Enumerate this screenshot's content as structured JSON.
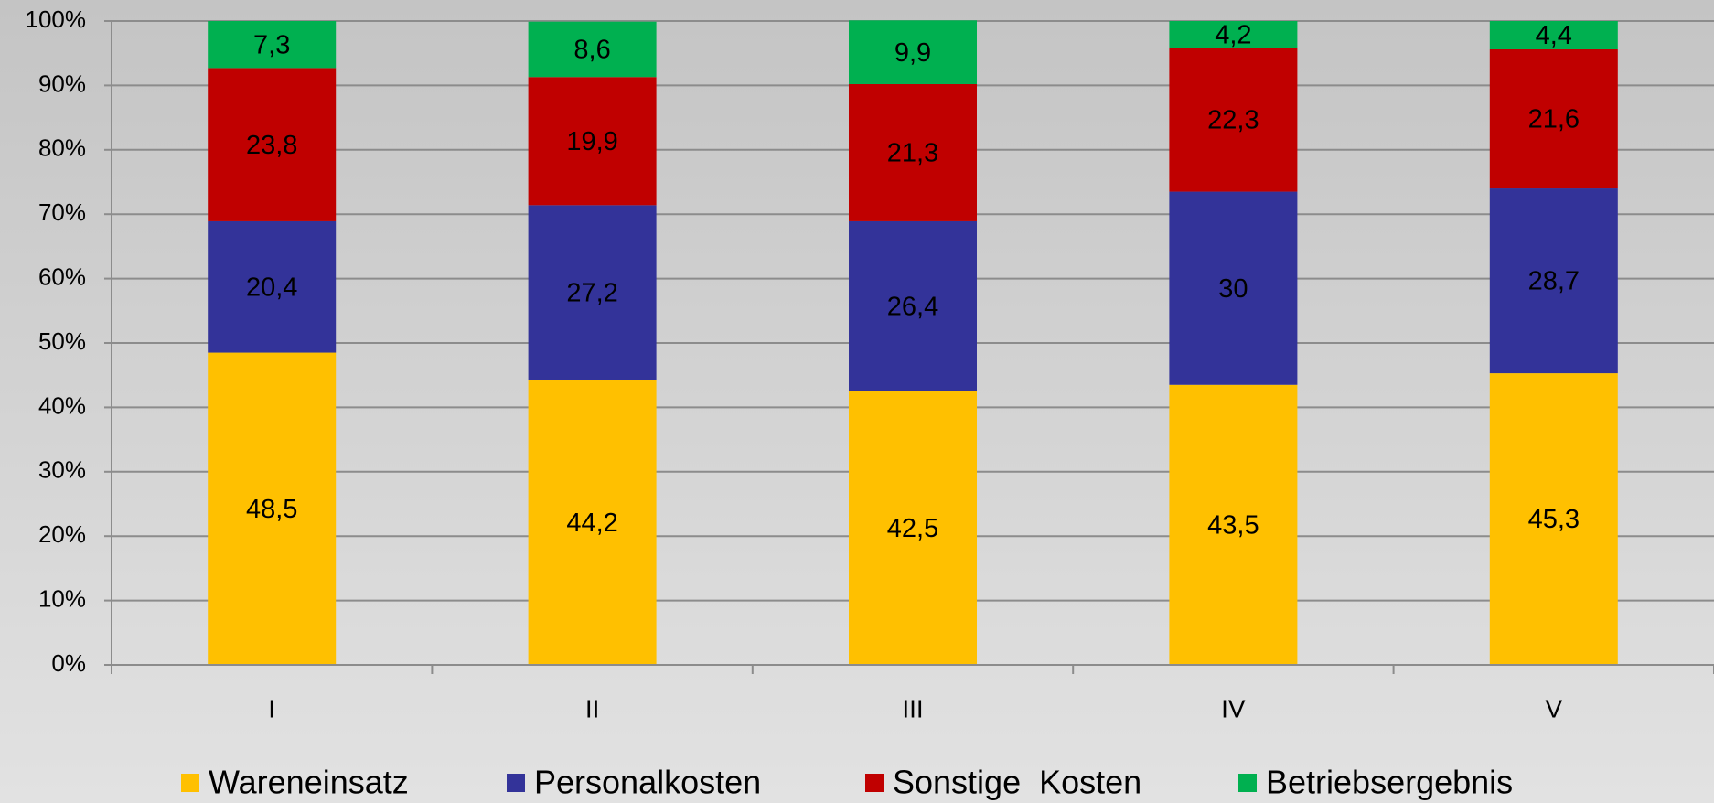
{
  "chart_data": {
    "type": "stacked_bar",
    "categories": [
      "I",
      "II",
      "III",
      "IV",
      "V"
    ],
    "series": [
      {
        "name": "Wareneinsatz",
        "color": "#ffc000",
        "values": [
          48.5,
          44.2,
          42.5,
          43.5,
          45.3
        ],
        "value_labels": [
          "48,5",
          "44,2",
          "42,5",
          "43,5",
          "45,3"
        ]
      },
      {
        "name": "Personalkosten",
        "color": "#333399",
        "values": [
          20.4,
          27.2,
          26.4,
          30,
          28.7
        ],
        "value_labels": [
          "20,4",
          "27,2",
          "26,4",
          "30",
          "28,7"
        ]
      },
      {
        "name": "Sonstige  Kosten",
        "color": "#c00000",
        "values": [
          23.8,
          19.9,
          21.3,
          22.3,
          21.6
        ],
        "value_labels": [
          "23,8",
          "19,9",
          "21,3",
          "22,3",
          "21,6"
        ]
      },
      {
        "name": "Betriebsergebnis",
        "color": "#00b050",
        "values": [
          7.3,
          8.6,
          9.9,
          4.2,
          4.4
        ],
        "value_labels": [
          "7,3",
          "8,6",
          "9,9",
          "4,2",
          "4,4"
        ]
      }
    ],
    "ylim": [
      0,
      100
    ],
    "yticks": [
      {
        "value": 0,
        "label": "0%"
      },
      {
        "value": 10,
        "label": "10%"
      },
      {
        "value": 20,
        "label": "20%"
      },
      {
        "value": 30,
        "label": "30%"
      },
      {
        "value": 40,
        "label": "40%"
      },
      {
        "value": 50,
        "label": "50%"
      },
      {
        "value": 60,
        "label": "60%"
      },
      {
        "value": 70,
        "label": "70%"
      },
      {
        "value": 80,
        "label": "80%"
      },
      {
        "value": 90,
        "label": "90%"
      },
      {
        "value": 100,
        "label": "100%"
      }
    ],
    "grid": true,
    "legend": "bottom"
  }
}
